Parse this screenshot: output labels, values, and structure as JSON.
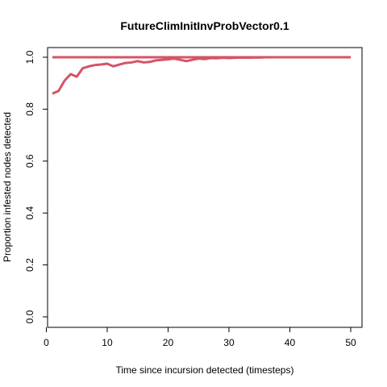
{
  "chart_data": {
    "type": "line",
    "title": "FutureClimInitInvProbVector0.1",
    "xlabel": "Time since incursion detected (timesteps)",
    "ylabel": "Proportion infested nodes detected",
    "xlim": [
      1,
      50
    ],
    "ylim": [
      0,
      1
    ],
    "x_ticks": [
      0,
      10,
      20,
      30,
      40,
      50
    ],
    "y_ticks": [
      0.0,
      0.2,
      0.4,
      0.6,
      0.8,
      1.0
    ],
    "x_tick_labels": [
      "0",
      "10",
      "20",
      "30",
      "40",
      "50"
    ],
    "y_tick_labels": [
      "0.0",
      "0.2",
      "0.4",
      "0.6",
      "0.8",
      "1.0"
    ],
    "grid": false,
    "legend": "none",
    "line_color": "#d45466",
    "x": [
      1,
      2,
      3,
      4,
      5,
      6,
      7,
      8,
      9,
      10,
      11,
      12,
      13,
      14,
      15,
      16,
      17,
      18,
      19,
      20,
      21,
      22,
      23,
      24,
      25,
      26,
      27,
      28,
      29,
      30,
      31,
      32,
      33,
      34,
      35,
      36,
      37,
      38,
      39,
      40,
      41,
      42,
      43,
      44,
      45,
      46,
      47,
      48,
      49,
      50
    ],
    "series": [
      {
        "values": [
          1,
          1,
          1,
          1,
          1,
          1,
          1,
          1,
          1,
          1,
          1,
          1,
          1,
          1,
          1,
          1,
          1,
          1,
          1,
          1,
          1,
          1,
          1,
          1,
          1,
          1,
          1,
          1,
          1,
          1,
          1,
          1,
          1,
          1,
          1,
          1,
          1,
          1,
          1,
          1,
          1,
          1,
          1,
          1,
          1,
          1,
          1,
          1,
          1,
          1
        ]
      },
      {
        "values": [
          0.86,
          0.87,
          0.91,
          0.935,
          0.925,
          0.958,
          0.965,
          0.97,
          0.972,
          0.975,
          0.965,
          0.972,
          0.978,
          0.98,
          0.985,
          0.98,
          0.982,
          0.988,
          0.99,
          0.992,
          0.995,
          0.99,
          0.985,
          0.99,
          0.995,
          0.993,
          0.997,
          0.996,
          0.998,
          0.997,
          0.998,
          0.999,
          0.998,
          0.999,
          0.999,
          1,
          1,
          1,
          1,
          1,
          1,
          1,
          1,
          1,
          1,
          1,
          1,
          1,
          1,
          1
        ]
      }
    ]
  }
}
